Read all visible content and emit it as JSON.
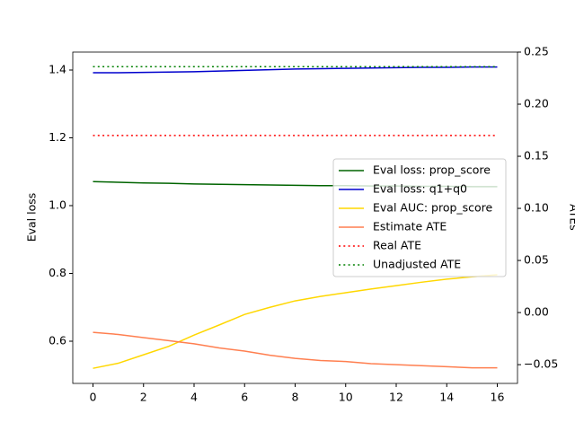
{
  "chart_data": {
    "type": "line",
    "ylabel": "Eval loss",
    "y2label": "ATEs",
    "x": [
      0,
      1,
      2,
      3,
      4,
      5,
      6,
      7,
      8,
      9,
      10,
      11,
      12,
      13,
      14,
      15,
      16
    ],
    "xlim": [
      -0.8,
      16.8
    ],
    "xticks": [
      0,
      2,
      4,
      6,
      8,
      10,
      12,
      14,
      16
    ],
    "ylim": [
      0.4755,
      1.453
    ],
    "yticks": [
      {
        "value": 0.6,
        "label": "0.6"
      },
      {
        "value": 0.8,
        "label": "0.8"
      },
      {
        "value": 1.0,
        "label": "1.0"
      },
      {
        "value": 1.2,
        "label": "1.2"
      },
      {
        "value": 1.4,
        "label": "1.4"
      }
    ],
    "y2lim": [
      -0.068,
      0.25
    ],
    "y2ticks": [
      {
        "value": -0.05,
        "label": "−0.05"
      },
      {
        "value": 0,
        "label": "0.00"
      },
      {
        "value": 0.05,
        "label": "0.05"
      },
      {
        "value": 0.1,
        "label": "0.10"
      },
      {
        "value": 0.15,
        "label": "0.15"
      },
      {
        "value": 0.2,
        "label": "0.20"
      },
      {
        "value": 0.25,
        "label": "0.25"
      }
    ],
    "legend": "center right",
    "series": [
      {
        "name": "Eval loss: prop_score",
        "color": "#006400",
        "linestyle": "solid",
        "axis": "y",
        "values": [
          1.071,
          1.069,
          1.067,
          1.066,
          1.064,
          1.063,
          1.062,
          1.061,
          1.06,
          1.059,
          1.059,
          1.058,
          1.058,
          1.057,
          1.057,
          1.056,
          1.056
        ]
      },
      {
        "name": "Eval loss: q1+q0",
        "color": "#0000cd",
        "linestyle": "solid",
        "axis": "y",
        "values": [
          1.392,
          1.392,
          1.393,
          1.394,
          1.395,
          1.397,
          1.399,
          1.401,
          1.403,
          1.404,
          1.405,
          1.406,
          1.407,
          1.408,
          1.408,
          1.409,
          1.409
        ]
      },
      {
        "name": "Eval AUC: prop_score",
        "color": "#ffd700",
        "linestyle": "solid",
        "axis": "y",
        "values": [
          0.52,
          0.535,
          0.56,
          0.585,
          0.618,
          0.648,
          0.679,
          0.7,
          0.719,
          0.732,
          0.743,
          0.754,
          0.764,
          0.774,
          0.783,
          0.79,
          0.796
        ]
      },
      {
        "name": "Estimate ATE",
        "color": "#ff7f50",
        "linestyle": "solid",
        "axis": "y2",
        "values": [
          -0.019,
          -0.021,
          -0.024,
          -0.027,
          -0.03,
          -0.034,
          -0.037,
          -0.041,
          -0.044,
          -0.046,
          -0.047,
          -0.049,
          -0.05,
          -0.051,
          -0.052,
          -0.053,
          -0.053
        ]
      },
      {
        "name": "Real ATE",
        "color": "#ff0000",
        "linestyle": "dotted",
        "axis": "y2",
        "values": [
          0.17,
          0.17,
          0.17,
          0.17,
          0.17,
          0.17,
          0.17,
          0.17,
          0.17,
          0.17,
          0.17,
          0.17,
          0.17,
          0.17,
          0.17,
          0.17,
          0.17
        ]
      },
      {
        "name": "Unadjusted ATE",
        "color": "#008000",
        "linestyle": "dotted",
        "axis": "y2",
        "values": [
          0.236,
          0.236,
          0.236,
          0.236,
          0.236,
          0.236,
          0.236,
          0.236,
          0.236,
          0.236,
          0.236,
          0.236,
          0.236,
          0.236,
          0.236,
          0.236,
          0.236
        ]
      }
    ]
  }
}
